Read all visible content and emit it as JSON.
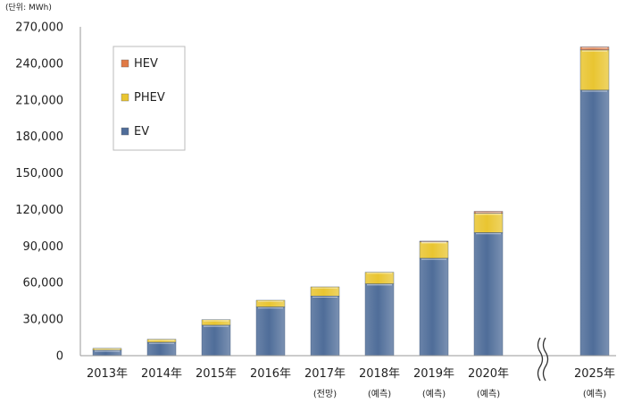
{
  "chart_data": {
    "type": "bar",
    "stacked": true,
    "unit_label": "(단위: MWh)",
    "categories": [
      "2013年",
      "2014年",
      "2015年",
      "2016年",
      "2017年",
      "2018年",
      "2019年",
      "2020年",
      "2025年"
    ],
    "category_notes": [
      "",
      "",
      "",
      "",
      "(전망)",
      "(예측)",
      "(예측)",
      "(예측)",
      "(예측)"
    ],
    "series": [
      {
        "name": "EV",
        "color": "#4f6d99",
        "values": [
          4500,
          11000,
          25000,
          40000,
          49000,
          59000,
          80000,
          101000,
          218000
        ]
      },
      {
        "name": "PHEV",
        "color": "#e9c531",
        "values": [
          1500,
          2500,
          4500,
          5500,
          7500,
          9500,
          13500,
          16000,
          33000
        ]
      },
      {
        "name": "HEV",
        "color": "#e07a45",
        "values": [
          0,
          0,
          0,
          0,
          0,
          0,
          500,
          1500,
          2500
        ]
      }
    ],
    "ylim": [
      0,
      270000
    ],
    "yticks": [
      "0",
      "30,000",
      "60,000",
      "90,000",
      "120,000",
      "150,000",
      "180,000",
      "210,000",
      "240,000",
      "270,000"
    ],
    "axis_break": "≈",
    "legend_position": "top-left"
  }
}
